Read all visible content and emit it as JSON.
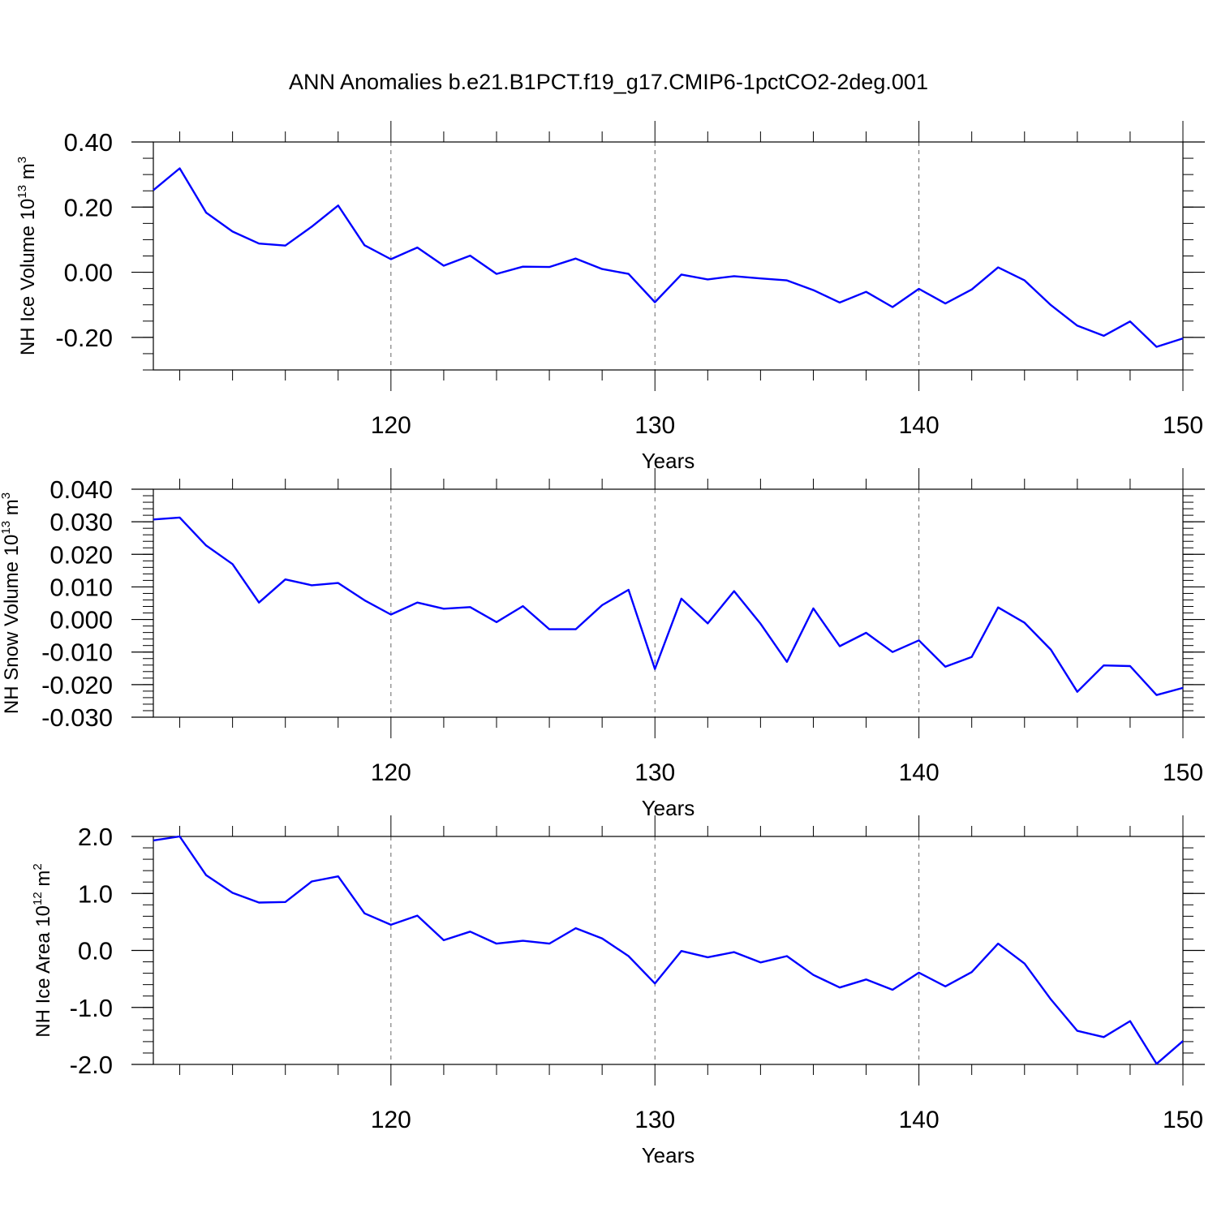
{
  "title": "ANN Anomalies b.e21.B1PCT.f19_g17.CMIP6-1pctCO2-2deg.001",
  "colors": {
    "line": "#0000ff",
    "axis": "#000000",
    "grid": "#666666"
  },
  "chart_data": [
    {
      "type": "line",
      "ylabel_main": "NH Ice Volume 10",
      "ylabel_exp": "13",
      "ylabel_unit": " m",
      "ylabel_unit_exp": "3",
      "xlabel": "Years",
      "xlim": [
        111,
        150
      ],
      "ylim": [
        -0.3,
        0.4
      ],
      "yticks": [
        0.4,
        0.2,
        0.0,
        -0.2
      ],
      "ytick_labels": [
        "0.40",
        "0.20",
        "0.00",
        "-0.20"
      ],
      "yminor_step": 0.05,
      "xticks": [
        120,
        130,
        140,
        150
      ],
      "xtick_labels": [
        "120",
        "130",
        "140",
        "150"
      ],
      "grid_x": [
        120,
        130,
        140
      ],
      "x": [
        111,
        112,
        113,
        114,
        115,
        116,
        117,
        118,
        119,
        120,
        121,
        122,
        123,
        124,
        125,
        126,
        127,
        128,
        129,
        130,
        131,
        132,
        133,
        134,
        135,
        136,
        137,
        138,
        139,
        140,
        141,
        142,
        143,
        144,
        145,
        146,
        147,
        148,
        149,
        150
      ],
      "values": [
        0.252,
        0.319,
        0.183,
        0.125,
        0.088,
        0.082,
        0.14,
        0.205,
        0.083,
        0.04,
        0.076,
        0.02,
        0.051,
        -0.005,
        0.017,
        0.016,
        0.042,
        0.01,
        -0.005,
        -0.092,
        -0.007,
        -0.022,
        -0.012,
        -0.019,
        -0.025,
        -0.055,
        -0.093,
        -0.06,
        -0.107,
        -0.051,
        -0.096,
        -0.053,
        0.015,
        -0.025,
        -0.101,
        -0.164,
        -0.195,
        -0.151,
        -0.229,
        -0.203
      ]
    },
    {
      "type": "line",
      "ylabel_main": "NH Snow Volume 10",
      "ylabel_exp": "13",
      "ylabel_unit": " m",
      "ylabel_unit_exp": "3",
      "xlabel": "Years",
      "xlim": [
        111,
        150
      ],
      "ylim": [
        -0.03,
        0.04
      ],
      "yticks": [
        0.04,
        0.03,
        0.02,
        0.01,
        0.0,
        -0.01,
        -0.02,
        -0.03
      ],
      "ytick_labels": [
        "0.040",
        "0.030",
        "0.020",
        "0.010",
        "0.000",
        "-0.010",
        "-0.020",
        "-0.030"
      ],
      "yminor_step": 0.002,
      "xticks": [
        120,
        130,
        140,
        150
      ],
      "xtick_labels": [
        "120",
        "130",
        "140",
        "150"
      ],
      "grid_x": [
        120,
        130,
        140
      ],
      "x": [
        111,
        112,
        113,
        114,
        115,
        116,
        117,
        118,
        119,
        120,
        121,
        122,
        123,
        124,
        125,
        126,
        127,
        128,
        129,
        130,
        131,
        132,
        133,
        134,
        135,
        136,
        137,
        138,
        139,
        140,
        141,
        142,
        143,
        144,
        145,
        146,
        147,
        148,
        149,
        150
      ],
      "values": [
        0.0307,
        0.0313,
        0.0227,
        0.017,
        0.0052,
        0.0123,
        0.0105,
        0.0112,
        0.0059,
        0.0015,
        0.0052,
        0.0033,
        0.0038,
        -0.0008,
        0.0041,
        -0.003,
        -0.003,
        0.0044,
        0.0091,
        -0.0152,
        0.0064,
        -0.0012,
        0.0087,
        -0.0013,
        -0.013,
        0.0034,
        -0.0082,
        -0.0041,
        -0.01,
        -0.0064,
        -0.0145,
        -0.0115,
        0.0037,
        -0.001,
        -0.0093,
        -0.0222,
        -0.0141,
        -0.0143,
        -0.0232,
        -0.021
      ]
    },
    {
      "type": "line",
      "ylabel_main": "NH Ice Area 10",
      "ylabel_exp": "12",
      "ylabel_unit": " m",
      "ylabel_unit_exp": "2",
      "xlabel": "Years",
      "xlim": [
        111,
        150
      ],
      "ylim": [
        -2.0,
        2.0
      ],
      "yticks": [
        2.0,
        1.0,
        0.0,
        -1.0,
        -2.0
      ],
      "ytick_labels": [
        "2.0",
        "1.0",
        "0.0",
        "-1.0",
        "-2.0"
      ],
      "yminor_step": 0.2,
      "xticks": [
        120,
        130,
        140,
        150
      ],
      "xtick_labels": [
        "120",
        "130",
        "140",
        "150"
      ],
      "grid_x": [
        120,
        130,
        140
      ],
      "x": [
        111,
        112,
        113,
        114,
        115,
        116,
        117,
        118,
        119,
        120,
        121,
        122,
        123,
        124,
        125,
        126,
        127,
        128,
        129,
        130,
        131,
        132,
        133,
        134,
        135,
        136,
        137,
        138,
        139,
        140,
        141,
        142,
        143,
        144,
        145,
        146,
        147,
        148,
        149,
        150
      ],
      "values": [
        1.93,
        2.0,
        1.32,
        1.01,
        0.84,
        0.85,
        1.21,
        1.3,
        0.65,
        0.45,
        0.61,
        0.18,
        0.33,
        0.12,
        0.17,
        0.12,
        0.39,
        0.21,
        -0.1,
        -0.58,
        -0.01,
        -0.12,
        -0.03,
        -0.21,
        -0.1,
        -0.43,
        -0.65,
        -0.51,
        -0.69,
        -0.39,
        -0.63,
        -0.38,
        0.12,
        -0.23,
        -0.86,
        -1.41,
        -1.52,
        -1.24,
        -1.99,
        -1.59
      ]
    }
  ]
}
